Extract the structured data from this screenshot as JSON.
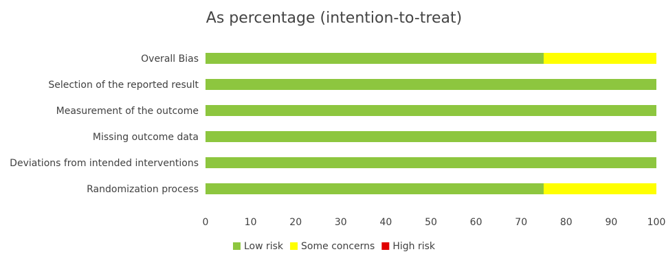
{
  "chart_data": {
    "type": "bar",
    "orientation": "horizontal",
    "stacked": true,
    "title": "As percentage (intention-to-treat)",
    "xlabel": "",
    "ylabel": "",
    "categories": [
      "Overall Bias",
      "Selection of the reported result",
      "Measurement of the outcome",
      "Missing outcome data",
      "Deviations from intended interventions",
      "Randomization process"
    ],
    "series": [
      {
        "name": "Low risk",
        "color": "#8dc63f",
        "values": [
          75,
          100,
          100,
          100,
          100,
          75
        ]
      },
      {
        "name": "Some concerns",
        "color": "#ffff00",
        "values": [
          25,
          0,
          0,
          0,
          0,
          25
        ]
      },
      {
        "name": "High risk",
        "color": "#e00000",
        "values": [
          0,
          0,
          0,
          0,
          0,
          0
        ]
      }
    ],
    "xlim": [
      0,
      100
    ],
    "xticks": [
      0,
      10,
      20,
      30,
      40,
      50,
      60,
      70,
      80,
      90,
      100
    ],
    "grid": false,
    "legend_position": "bottom"
  }
}
